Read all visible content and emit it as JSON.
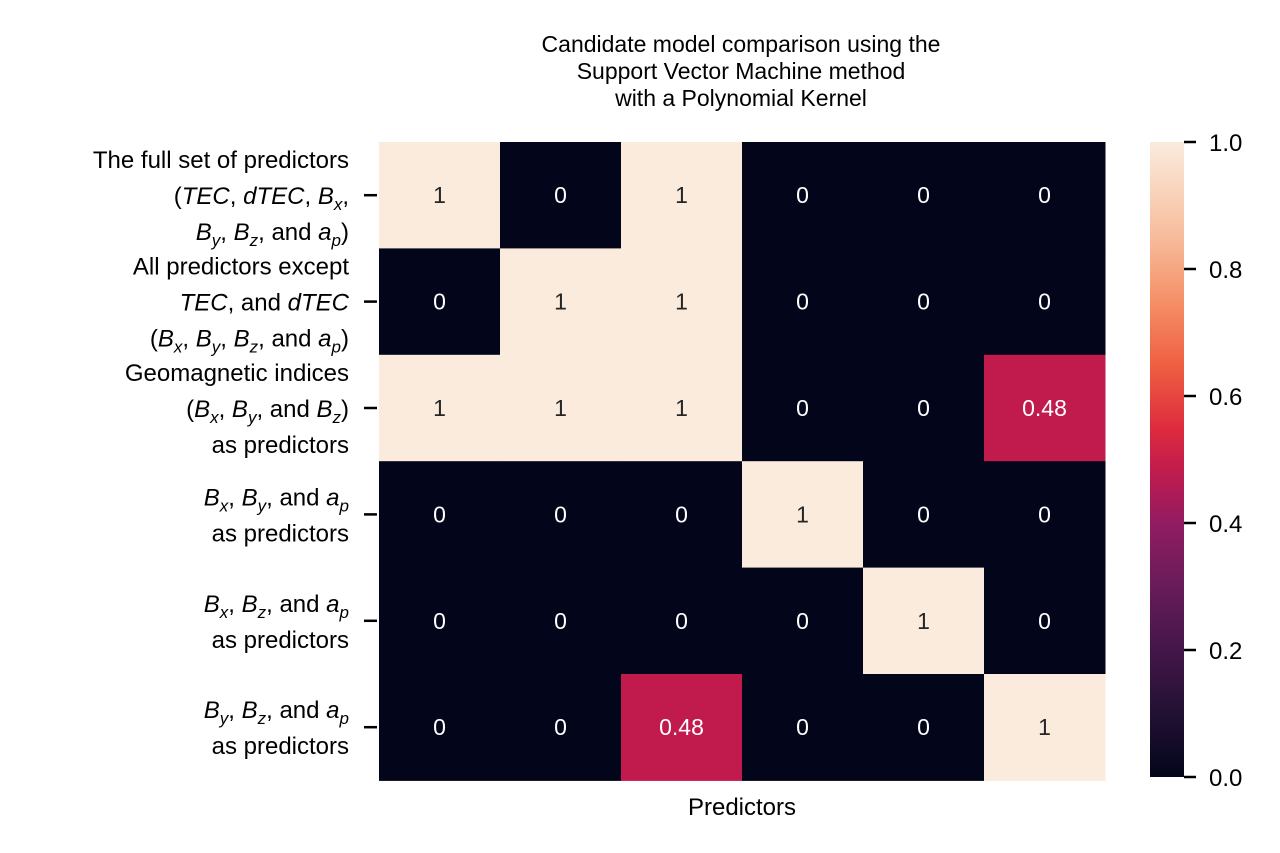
{
  "chart_data": {
    "type": "heatmap",
    "title_lines": [
      "Candidate model comparison using the",
      "Support Vector Machine method",
      "with a Polynomial Kernel"
    ],
    "xlabel": "Predictors",
    "row_labels": [
      [
        "The full set of predictors",
        "(TEC, dTEC, Bx,",
        "By, Bz, and ap)"
      ],
      [
        "All predictors except",
        "TEC, and dTEC",
        "(Bx, By, Bz, and ap)"
      ],
      [
        "Geomagnetic indices",
        "(Bx, By, and Bz)",
        "as predictors"
      ],
      [
        "Bx, By, and ap",
        "as predictors"
      ],
      [
        "Bx, Bz, and ap",
        "as predictors"
      ],
      [
        "By, Bz, and ap",
        "as predictors"
      ]
    ],
    "values": [
      [
        1,
        0,
        1,
        0,
        0,
        0
      ],
      [
        0,
        1,
        1,
        0,
        0,
        0
      ],
      [
        1,
        1,
        1,
        0,
        0,
        0.48
      ],
      [
        0,
        0,
        0,
        1,
        0,
        0
      ],
      [
        0,
        0,
        0,
        0,
        1,
        0
      ],
      [
        0,
        0,
        0.48,
        0,
        0,
        1
      ]
    ],
    "cell_labels": [
      [
        "1",
        "0",
        "1",
        "0",
        "0",
        "0"
      ],
      [
        "0",
        "1",
        "1",
        "0",
        "0",
        "0"
      ],
      [
        "1",
        "1",
        "1",
        "0",
        "0",
        "0.48"
      ],
      [
        "0",
        "0",
        "0",
        "1",
        "0",
        "0"
      ],
      [
        "0",
        "0",
        "0",
        "0",
        "1",
        "0"
      ],
      [
        "0",
        "0",
        "0.48",
        "0",
        "0",
        "1"
      ]
    ],
    "colorbar": {
      "range": [
        0.0,
        1.0
      ],
      "ticks": [
        0.0,
        0.2,
        0.4,
        0.6,
        0.8,
        1.0
      ],
      "tick_labels": [
        "0.0",
        "0.2",
        "0.4",
        "0.6",
        "0.8",
        "1.0"
      ]
    },
    "colormap": "rocket",
    "colors": {
      "low": "#03051a",
      "mid": "#c11a4d",
      "high": "#faebdd",
      "text_on_dark": "#ffffff",
      "text_on_light": "#262626"
    }
  }
}
